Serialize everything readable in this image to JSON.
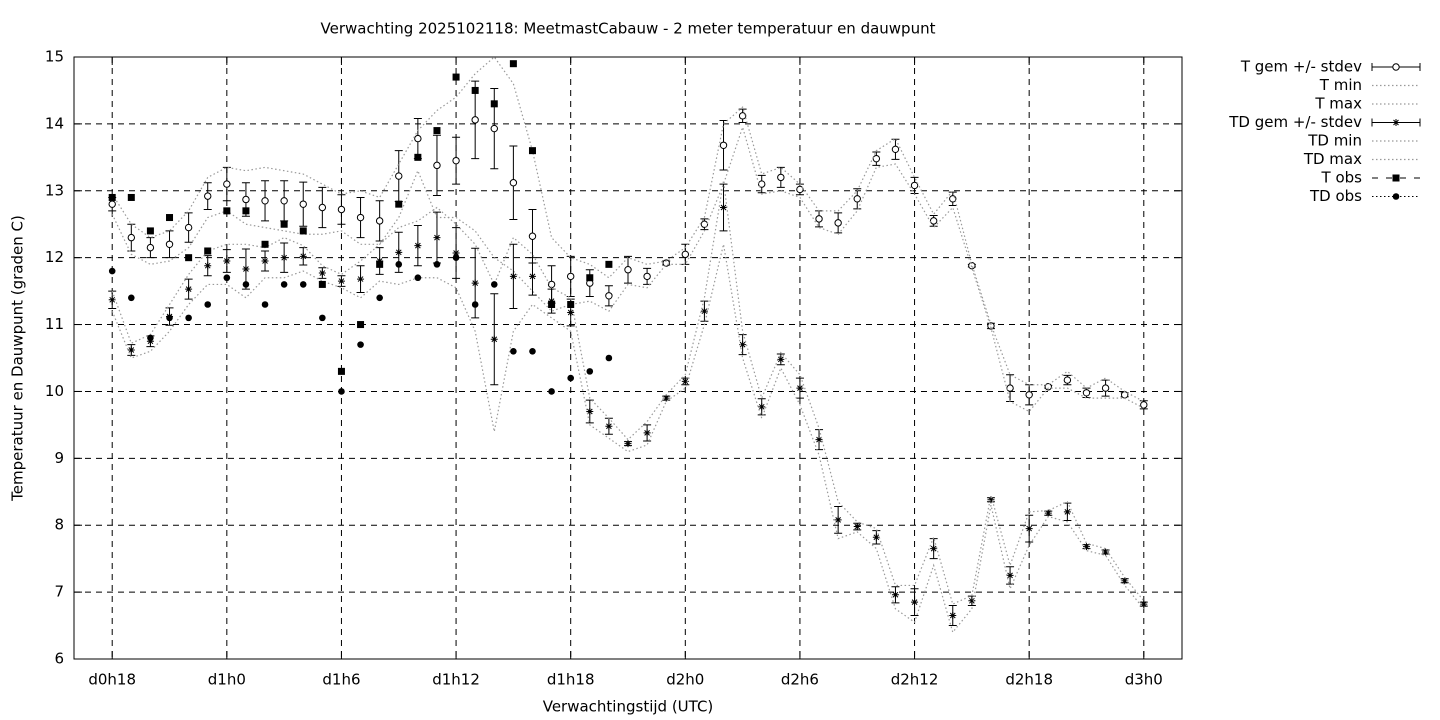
{
  "chart_data": {
    "type": "errorbar",
    "title": "Verwachting 2025102118: MeetmastCabauw - 2 meter temperatuur en dauwpunt",
    "x_label": "Verwachtingstijd (UTC)",
    "y_label": "Temperatuur en Dauwpunt (graden C)",
    "x": [
      0,
      1,
      2,
      3,
      4,
      5,
      6,
      7,
      8,
      9,
      10,
      11,
      12,
      13,
      14,
      15,
      16,
      17,
      18,
      19,
      20,
      21,
      22,
      23,
      24,
      25,
      26,
      27,
      28,
      29,
      30,
      31,
      32,
      33,
      34,
      35,
      36,
      37,
      38,
      39,
      40,
      41,
      42,
      43,
      44,
      45,
      46,
      47,
      48,
      49,
      50,
      51,
      52,
      53,
      54
    ],
    "xlim": [
      -2,
      56
    ],
    "xticks": [
      {
        "value": 0,
        "label": "d0h18"
      },
      {
        "value": 6,
        "label": "d1h0"
      },
      {
        "value": 12,
        "label": "d1h6"
      },
      {
        "value": 18,
        "label": "d1h12"
      },
      {
        "value": 24,
        "label": "d1h18"
      },
      {
        "value": 30,
        "label": "d2h0"
      },
      {
        "value": 36,
        "label": "d2h6"
      },
      {
        "value": 42,
        "label": "d2h12"
      },
      {
        "value": 48,
        "label": "d2h18"
      },
      {
        "value": 54,
        "label": "d3h0"
      }
    ],
    "ylim": [
      6,
      15
    ],
    "yticks": [
      6,
      7,
      8,
      9,
      10,
      11,
      12,
      13,
      14,
      15
    ],
    "grid": true,
    "legend": "outside-right",
    "series": [
      {
        "name": "T gem +/- stdev",
        "color": "#000000",
        "style": "errorbars",
        "marker": "open-circle",
        "values": [
          12.8,
          12.3,
          12.15,
          12.2,
          12.45,
          12.92,
          13.1,
          12.87,
          12.85,
          12.85,
          12.8,
          12.75,
          12.72,
          12.6,
          12.55,
          13.22,
          13.78,
          13.38,
          13.45,
          14.06,
          13.93,
          13.12,
          12.32,
          11.6,
          11.72,
          11.62,
          11.43,
          11.82,
          11.72,
          11.92,
          12.05,
          12.5,
          13.68,
          14.12,
          13.1,
          13.2,
          13.02,
          12.58,
          12.52,
          12.88,
          13.48,
          13.62,
          13.08,
          12.55,
          12.88,
          11.88,
          10.98,
          10.05,
          9.95,
          10.07,
          10.17,
          9.98,
          10.05,
          9.95,
          9.8
        ],
        "errors": [
          0.1,
          0.2,
          0.15,
          0.2,
          0.22,
          0.2,
          0.25,
          0.25,
          0.3,
          0.3,
          0.33,
          0.3,
          0.22,
          0.3,
          0.3,
          0.38,
          0.3,
          0.45,
          0.35,
          0.58,
          0.6,
          0.55,
          0.4,
          0.28,
          0.3,
          0.2,
          0.15,
          0.2,
          0.12,
          0.03,
          0.15,
          0.08,
          0.37,
          0.1,
          0.13,
          0.15,
          0.08,
          0.12,
          0.15,
          0.15,
          0.1,
          0.15,
          0.12,
          0.08,
          0.1,
          0.02,
          0.04,
          0.2,
          0.15,
          0.02,
          0.07,
          0.07,
          0.12,
          0.03,
          0.06
        ]
      },
      {
        "name": "T min",
        "color": "#999999",
        "style": "line",
        "values": [
          12.65,
          12.05,
          11.9,
          11.95,
          12.15,
          12.6,
          12.7,
          12.5,
          12.45,
          12.4,
          12.35,
          12.35,
          12.4,
          12.2,
          12.2,
          12.6,
          13.3,
          12.6,
          12.6,
          12.4,
          12.0,
          11.8,
          11.5,
          11.2,
          11.3,
          11.35,
          11.2,
          11.6,
          11.55,
          11.9,
          11.9,
          12.4,
          13.1,
          13.95,
          12.95,
          13.0,
          12.9,
          12.45,
          12.35,
          12.7,
          13.35,
          13.4,
          12.95,
          12.45,
          12.75,
          11.85,
          10.95,
          9.85,
          9.7,
          10.05,
          10.05,
          9.9,
          9.9,
          9.9,
          9.75
        ]
      },
      {
        "name": "T max",
        "color": "#999999",
        "style": "line",
        "values": [
          12.95,
          12.5,
          12.3,
          12.4,
          12.7,
          13.2,
          13.35,
          13.3,
          13.35,
          13.3,
          13.25,
          13.1,
          12.95,
          13.0,
          12.9,
          13.4,
          13.9,
          14.2,
          14.4,
          14.75,
          15.0,
          14.6,
          13.6,
          12.3,
          12.0,
          11.9,
          11.7,
          12.0,
          11.9,
          11.95,
          12.15,
          12.6,
          14.0,
          14.25,
          13.25,
          13.35,
          13.1,
          12.7,
          12.7,
          13.0,
          13.6,
          13.78,
          13.2,
          12.65,
          13.0,
          11.9,
          11.0,
          10.25,
          10.1,
          10.1,
          10.3,
          10.05,
          10.2,
          10.0,
          9.85
        ]
      },
      {
        "name": "TD gem +/- stdev",
        "color": "#000000",
        "style": "errorbars",
        "marker": "asterisk",
        "values": [
          11.37,
          10.62,
          10.75,
          11.12,
          11.53,
          11.88,
          11.95,
          11.83,
          11.95,
          12.0,
          12.02,
          11.77,
          11.65,
          11.68,
          11.95,
          12.08,
          12.18,
          12.3,
          12.07,
          11.62,
          10.78,
          11.72,
          11.72,
          11.35,
          11.18,
          9.7,
          9.48,
          9.22,
          9.38,
          9.9,
          10.15,
          11.2,
          12.75,
          10.7,
          9.77,
          10.48,
          10.05,
          9.28,
          8.08,
          7.98,
          7.82,
          6.96,
          6.85,
          7.65,
          6.65,
          6.87,
          8.38,
          7.25,
          7.95,
          8.18,
          8.2,
          7.68,
          7.6,
          7.17,
          6.82
        ],
        "errors": [
          0.13,
          0.08,
          0.08,
          0.13,
          0.15,
          0.15,
          0.17,
          0.3,
          0.15,
          0.22,
          0.13,
          0.08,
          0.08,
          0.2,
          0.2,
          0.3,
          0.3,
          0.38,
          0.38,
          0.52,
          0.68,
          0.48,
          0.28,
          0.18,
          0.2,
          0.17,
          0.12,
          0.03,
          0.12,
          0.03,
          0.05,
          0.15,
          0.35,
          0.15,
          0.12,
          0.08,
          0.15,
          0.15,
          0.2,
          0.05,
          0.1,
          0.12,
          0.2,
          0.15,
          0.15,
          0.07,
          0.03,
          0.13,
          0.2,
          0.03,
          0.13,
          0.03,
          0.03,
          0.03,
          0.03
        ]
      },
      {
        "name": "TD min",
        "color": "#999999",
        "style": "line",
        "values": [
          11.2,
          10.5,
          10.6,
          10.9,
          11.3,
          11.6,
          11.6,
          11.4,
          11.7,
          11.7,
          11.8,
          11.65,
          11.55,
          11.4,
          11.65,
          11.6,
          11.7,
          11.7,
          11.55,
          10.9,
          9.4,
          10.9,
          11.3,
          11.1,
          10.9,
          9.5,
          9.3,
          9.1,
          9.2,
          9.85,
          10.05,
          11.0,
          12.2,
          10.5,
          9.6,
          10.35,
          9.8,
          9.05,
          7.8,
          7.9,
          7.65,
          6.75,
          6.55,
          7.4,
          6.4,
          6.75,
          8.3,
          7.05,
          7.7,
          8.13,
          8.05,
          7.62,
          7.55,
          7.1,
          6.75
        ]
      },
      {
        "name": "TD max",
        "color": "#999999",
        "style": "line",
        "values": [
          11.5,
          10.72,
          10.85,
          11.3,
          11.75,
          12.1,
          12.2,
          12.2,
          12.15,
          12.3,
          12.18,
          11.88,
          11.75,
          11.95,
          12.2,
          12.45,
          12.55,
          12.75,
          12.5,
          12.2,
          11.6,
          12.3,
          12.05,
          11.55,
          11.4,
          9.9,
          9.6,
          9.28,
          9.55,
          9.95,
          10.25,
          11.4,
          13.15,
          10.9,
          9.9,
          10.58,
          10.25,
          9.45,
          8.35,
          8.05,
          7.95,
          7.1,
          7.1,
          7.82,
          6.82,
          6.95,
          8.45,
          7.4,
          8.2,
          8.22,
          8.35,
          7.73,
          7.65,
          7.22,
          6.87
        ]
      },
      {
        "name": "T obs",
        "color": "#000000",
        "style": "points",
        "marker": "square",
        "values": [
          12.9,
          12.9,
          12.4,
          12.6,
          12.0,
          12.1,
          12.7,
          12.7,
          12.2,
          12.5,
          12.4,
          11.6,
          10.3,
          11.0,
          11.9,
          12.8,
          13.5,
          13.9,
          14.7,
          14.5,
          14.3,
          14.9,
          13.6,
          11.3,
          11.3,
          11.7,
          11.9,
          null,
          null,
          null,
          null,
          null,
          null,
          null,
          null,
          null,
          null,
          null,
          null,
          null,
          null,
          null,
          null,
          null,
          null,
          null,
          null,
          null,
          null,
          null,
          null,
          null,
          null,
          null,
          null
        ]
      },
      {
        "name": "TD obs",
        "color": "#000000",
        "style": "points",
        "marker": "dot",
        "values": [
          11.8,
          11.4,
          10.8,
          11.1,
          11.1,
          11.3,
          11.7,
          11.6,
          11.3,
          11.6,
          11.6,
          11.1,
          10.0,
          10.7,
          11.4,
          11.9,
          11.7,
          11.9,
          12.0,
          11.3,
          11.6,
          10.6,
          10.6,
          10.0,
          10.2,
          10.3,
          10.5,
          null,
          null,
          null,
          null,
          null,
          null,
          null,
          null,
          null,
          null,
          null,
          null,
          null,
          null,
          null,
          null,
          null,
          null,
          null,
          null,
          null,
          null,
          null,
          null,
          null,
          null,
          null,
          null
        ]
      }
    ]
  }
}
